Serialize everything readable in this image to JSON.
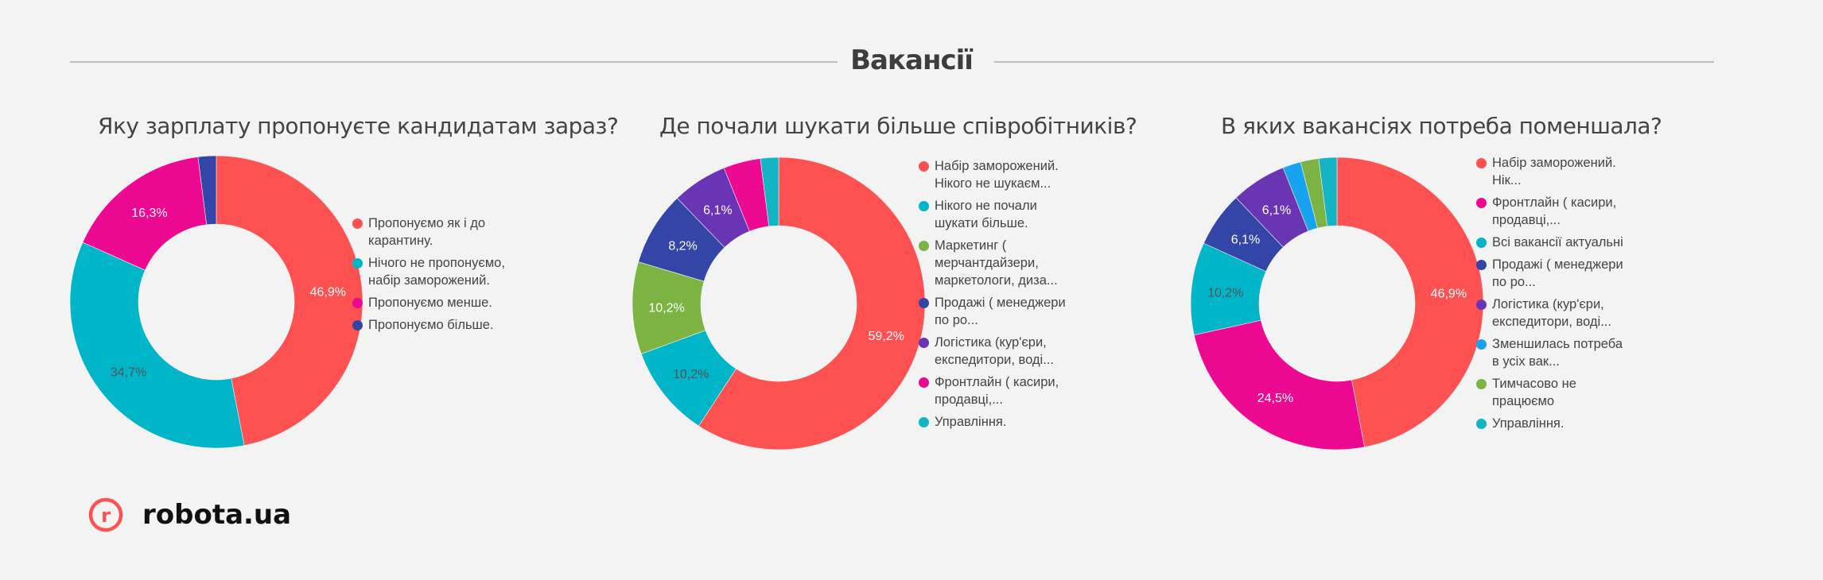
{
  "header": {
    "title": "Вакансії"
  },
  "brand": {
    "name": "robota.ua",
    "icon_letter": "r",
    "color": "#fe5252"
  },
  "chart_data": [
    {
      "type": "pie",
      "title": "Яку зарплату пропонуєте кандидатам зараз?",
      "categories": [
        "Пропонуємо як і до карантину.",
        "Нічого не пропонуємо, набір заморожений.",
        "Пропонуємо менше.",
        "Пропонуємо більше."
      ],
      "values": [
        46.9,
        34.7,
        16.3,
        2.0
      ],
      "labels": [
        "46,9%",
        "34,7%",
        "16,3%",
        ""
      ],
      "colors": [
        "#fe5252",
        "#00b5c8",
        "#ec0890",
        "#3346a8"
      ],
      "label_colors": [
        "#ffffff",
        "#555555",
        "#ffffff",
        "#ffffff"
      ],
      "legend_position": "right"
    },
    {
      "type": "pie",
      "title": "Де почали шукати більше співробітників?",
      "categories": [
        "Набір заморожений. Нікого не шукаєм...",
        "Нікого не почали шукати більше.",
        "Маркетинг ( мерчантдайзери, маркетологи, диза...",
        "Продажі ( менеджери по ро...",
        "Логістика (кур'єри, експедитори, воді...",
        "Фронтлайн ( касири, продавці,...",
        "Управління."
      ],
      "values": [
        59.2,
        10.2,
        10.2,
        8.2,
        6.1,
        4.1,
        2.0
      ],
      "labels": [
        "59,2%",
        "10,2%",
        "10,2%",
        "8,2%",
        "6,1%",
        "",
        ""
      ],
      "colors": [
        "#fe5252",
        "#00b5c8",
        "#7cb342",
        "#3346a8",
        "#6a35b5",
        "#ec0890",
        "#13b4c4"
      ],
      "label_colors": [
        "#ffffff",
        "#555555",
        "#ffffff",
        "#ffffff",
        "#ffffff",
        "#ffffff",
        "#ffffff"
      ],
      "legend_position": "right"
    },
    {
      "type": "pie",
      "title": "В яких вакансіях потреба поменшала?",
      "categories": [
        "Набір заморожений. Нік...",
        "Фронтлайн ( касири, продавці,...",
        "Всі вакансії актуальні",
        "Продажі ( менеджери по ро...",
        "Логістика (кур'єри, експедитори, воді...",
        "Зменшилась потреба в усіх вак...",
        "Тимчасово не працюємо",
        "Управління."
      ],
      "values": [
        46.9,
        24.5,
        10.2,
        6.1,
        6.1,
        2.0,
        2.0,
        2.0
      ],
      "labels": [
        "46,9%",
        "24,5%",
        "10,2%",
        "6,1%",
        "6,1%",
        "",
        "",
        ""
      ],
      "colors": [
        "#fe5252",
        "#ec0890",
        "#00b5c8",
        "#3346a8",
        "#6a35b5",
        "#18a3f0",
        "#7cb342",
        "#13b4c4"
      ],
      "label_colors": [
        "#ffffff",
        "#ffffff",
        "#555555",
        "#ffffff",
        "#ffffff",
        "#ffffff",
        "#ffffff",
        "#ffffff"
      ],
      "legend_position": "right"
    }
  ]
}
